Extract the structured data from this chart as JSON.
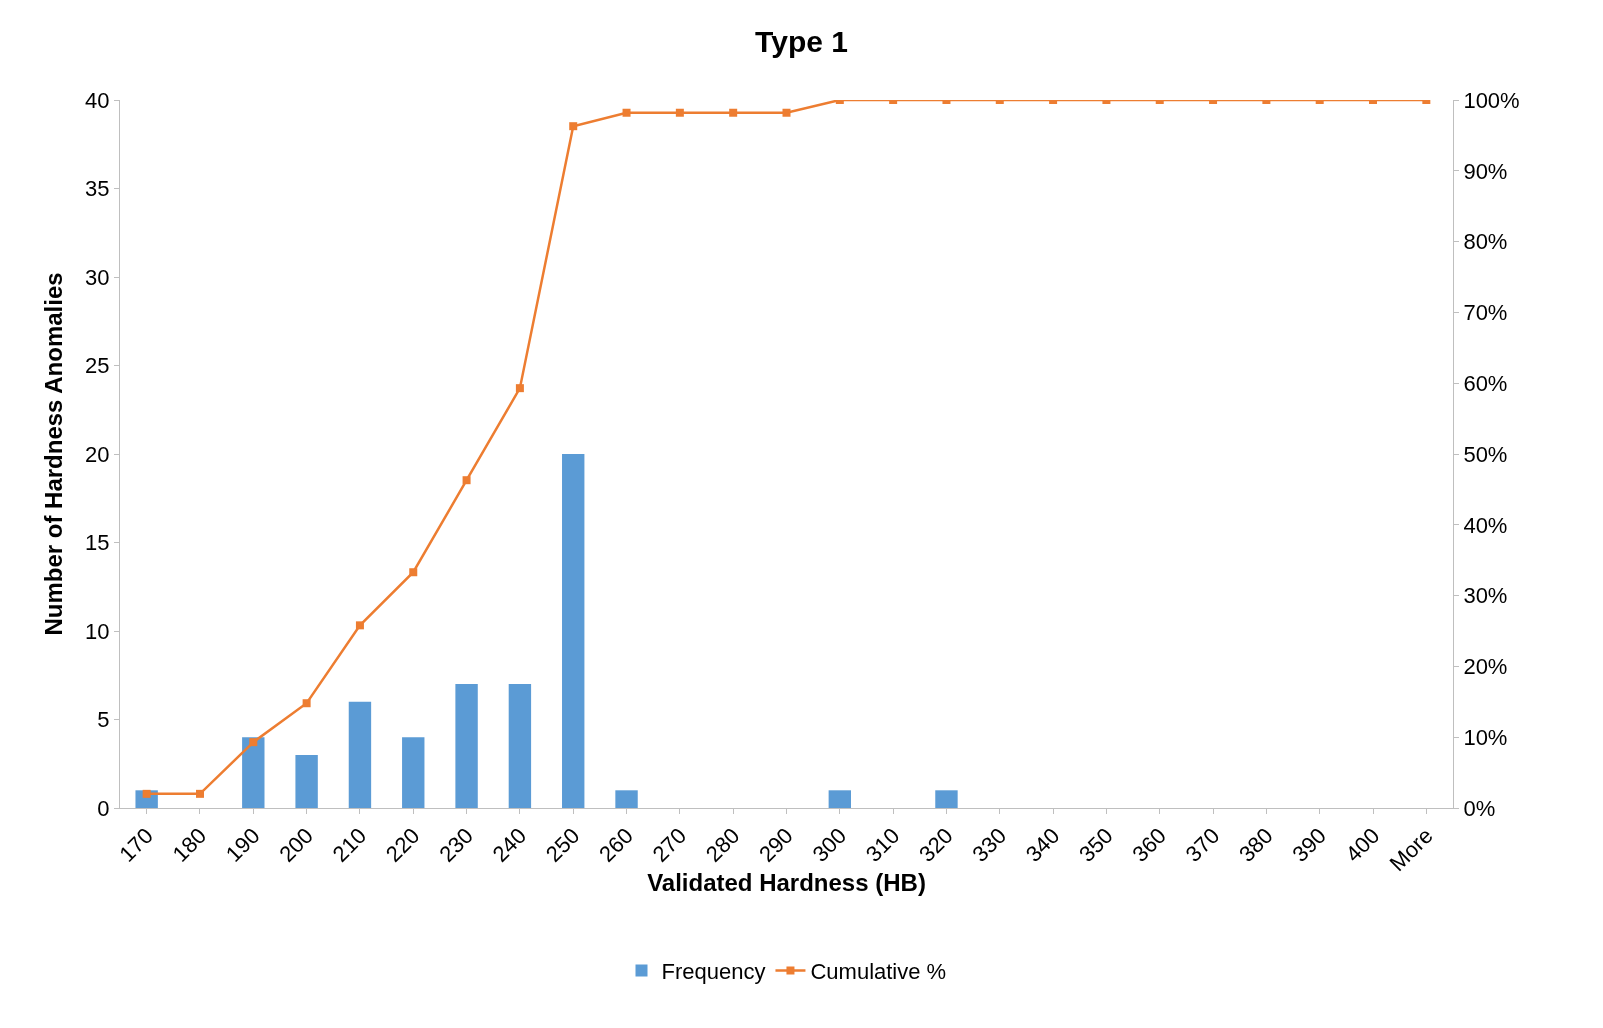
{
  "chart_data": {
    "type": "bar",
    "title": "Type 1",
    "xlabel": "Validated Hardness (HB)",
    "ylabel": "Number of Hardness Anomalies",
    "categories": [
      "170",
      "180",
      "190",
      "200",
      "210",
      "220",
      "230",
      "240",
      "250",
      "260",
      "270",
      "280",
      "290",
      "300",
      "310",
      "320",
      "330",
      "340",
      "350",
      "360",
      "370",
      "380",
      "390",
      "400",
      "More"
    ],
    "series": [
      {
        "name": "Frequency",
        "color": "#5b9bd5",
        "values": [
          1,
          0,
          4,
          3,
          6,
          4,
          7,
          7,
          20,
          1,
          0,
          0,
          0,
          1,
          0,
          1,
          0,
          0,
          0,
          0,
          0,
          0,
          0,
          0,
          0
        ]
      },
      {
        "name": "Cumulative %",
        "type": "line",
        "axis": "y2",
        "color": "#ed7d31",
        "marker": "square",
        "values": [
          2,
          2,
          9.3,
          14.8,
          25.8,
          33.3,
          46.3,
          59.3,
          96.3,
          98.2,
          98.2,
          98.2,
          98.2,
          100,
          100,
          100,
          100,
          100,
          100,
          100,
          100,
          100,
          100,
          100,
          100
        ]
      }
    ],
    "ylim": [
      0,
      40
    ],
    "yticks": [
      0,
      5,
      10,
      15,
      20,
      25,
      30,
      35,
      40
    ],
    "y2lim": [
      0,
      100
    ],
    "y2ticks": [
      {
        "value": 0,
        "label": "0%"
      },
      {
        "value": 10,
        "label": "10%"
      },
      {
        "value": 20,
        "label": "20%"
      },
      {
        "value": 30,
        "label": "30%"
      },
      {
        "value": 40,
        "label": "40%"
      },
      {
        "value": 50,
        "label": "50%"
      },
      {
        "value": 60,
        "label": "60%"
      },
      {
        "value": 70,
        "label": "70%"
      },
      {
        "value": 80,
        "label": "80%"
      },
      {
        "value": 90,
        "label": "90%"
      },
      {
        "value": 100,
        "label": "100%"
      }
    ],
    "grid": false,
    "legend": "bottom"
  }
}
